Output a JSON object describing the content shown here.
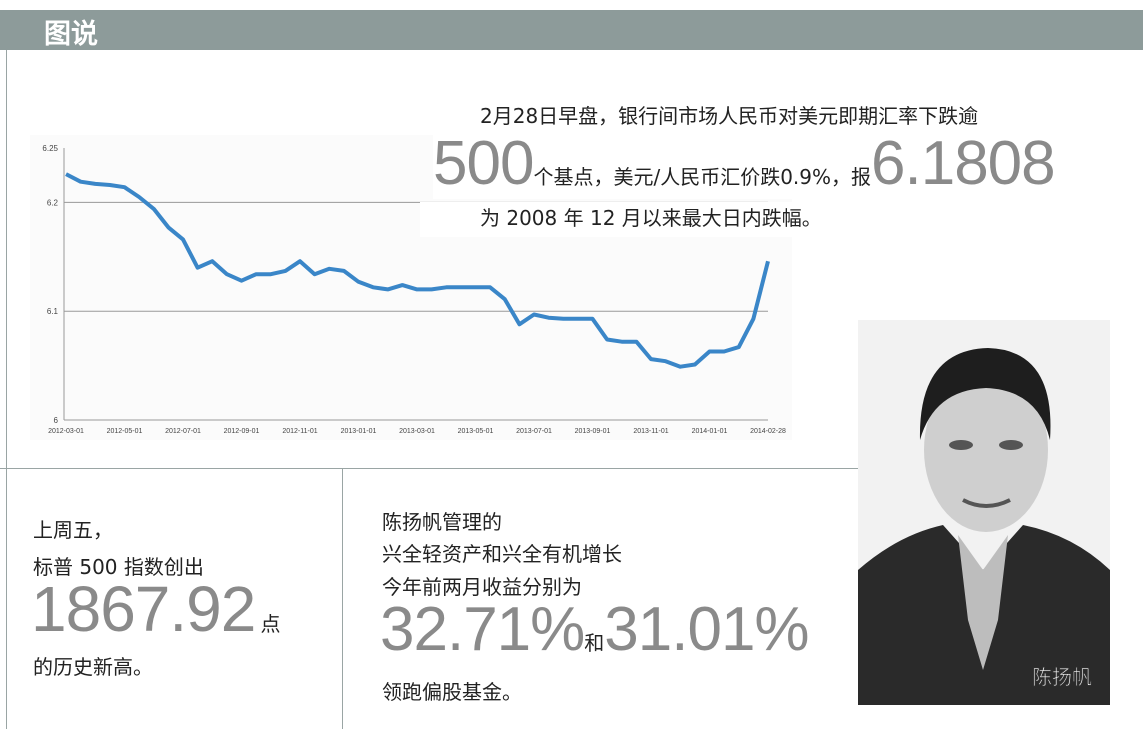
{
  "header": {
    "title": "图说"
  },
  "top": {
    "line1": "2月28日早盘，银行间市场人民币对美元即期汇率下跌逾",
    "big1": "500",
    "mid": "个基点，美元/人民币汇价跌0.9%，报",
    "big2": "6.1808",
    "line3": "为 2008 年 12 月以来最大日内跌幅。"
  },
  "chart": {
    "type": "line",
    "color": "#3a86c8",
    "categories": [
      "2012-03-01",
      null,
      null,
      null,
      "2012-05-01",
      null,
      null,
      null,
      "2012-07-01",
      null,
      null,
      null,
      "2012-09-01",
      null,
      null,
      null,
      "2012-11-01",
      null,
      null,
      null,
      "2013-01-01",
      null,
      null,
      null,
      "2013-03-01",
      null,
      null,
      null,
      "2013-05-01",
      null,
      null,
      null,
      "2013-07-01",
      null,
      null,
      null,
      "2013-09-01",
      null,
      null,
      null,
      "2013-11-01",
      null,
      null,
      null,
      "2014-01-01",
      null,
      null,
      null,
      "2014-02-28"
    ],
    "values": [
      6.226,
      6.219,
      6.217,
      6.216,
      6.214,
      6.205,
      6.194,
      6.177,
      6.166,
      6.14,
      6.146,
      6.134,
      6.128,
      6.134,
      6.134,
      6.137,
      6.146,
      6.134,
      6.139,
      6.137,
      6.127,
      6.122,
      6.12,
      6.124,
      6.12,
      6.12,
      6.122,
      6.122,
      6.122,
      6.122,
      6.111,
      6.088,
      6.097,
      6.094,
      6.093,
      6.093,
      6.093,
      6.074,
      6.072,
      6.072,
      6.056,
      6.054,
      6.049,
      6.051,
      6.063,
      6.063,
      6.067,
      6.093,
      6.146
    ],
    "ylim": [
      6,
      6.25
    ],
    "yticks": [
      6.25,
      6.2,
      6.1,
      6
    ]
  },
  "left": {
    "line1": "上周五，",
    "line2": "标普 500 指数创出",
    "big": "1867.92",
    "unit": "点",
    "line3": "的历史新高。"
  },
  "middle": {
    "line1": "陈扬帆管理的",
    "line2": "兴全轻资产和兴全有机增长",
    "line3": "今年前两月收益分别为",
    "big1": "32.71%",
    "conj": "和",
    "big2": "31.01%",
    "line4": "领跑偏股基金。"
  },
  "photo": {
    "caption": "陈扬帆"
  }
}
